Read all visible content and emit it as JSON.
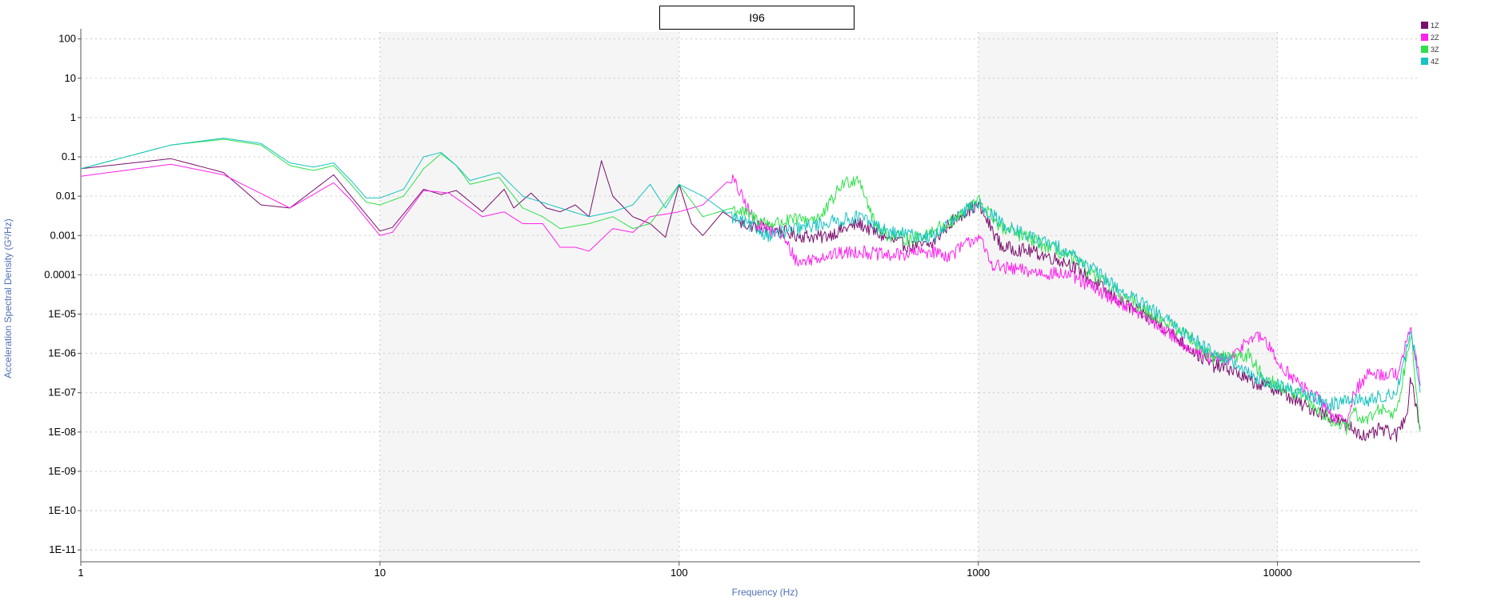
{
  "colors": {
    "1Z": "#7a0f6e",
    "2Z": "#ff22ee",
    "3Z": "#2ee04a",
    "4Z": "#16c4c0",
    "axis_title": "#4f6fb6",
    "band": "#f5f5f5",
    "grid": "#c8c8c8"
  },
  "chart_data": {
    "type": "line",
    "title": "I96",
    "xlabel": "Frequency (Hz)",
    "ylabel": "Acceleration Spectral Density (G²/Hz)",
    "x_scale": "log",
    "y_scale": "log",
    "xlim": [
      1,
      30000
    ],
    "ylim": [
      5e-12,
      150
    ],
    "grid": true,
    "legend_position": "top-right",
    "x_ticks": [
      "1",
      "10",
      "100",
      "1000",
      "10000"
    ],
    "y_ticks": [
      "100",
      "10",
      "1",
      "0.1",
      "0.01",
      "0.001",
      "0.0001",
      "1E-05",
      "1E-06",
      "1E-07",
      "1E-08",
      "1E-09",
      "1E-10",
      "1E-11"
    ],
    "series": [
      {
        "name": "1Z",
        "points": [
          [
            1,
            0.05
          ],
          [
            2,
            0.09
          ],
          [
            3,
            0.04
          ],
          [
            4,
            0.006
          ],
          [
            5,
            0.005
          ],
          [
            7,
            0.035
          ],
          [
            8,
            0.01
          ],
          [
            10,
            0.0013
          ],
          [
            11,
            0.0016
          ],
          [
            14,
            0.015
          ],
          [
            16,
            0.011
          ],
          [
            18,
            0.014
          ],
          [
            22,
            0.004
          ],
          [
            26,
            0.015
          ],
          [
            28,
            0.005
          ],
          [
            32,
            0.012
          ],
          [
            36,
            0.005
          ],
          [
            40,
            0.004
          ],
          [
            45,
            0.006
          ],
          [
            50,
            0.003
          ],
          [
            55,
            0.08
          ],
          [
            60,
            0.01
          ],
          [
            70,
            0.003
          ],
          [
            80,
            0.002
          ],
          [
            90,
            0.0009
          ],
          [
            100,
            0.02
          ],
          [
            110,
            0.002
          ],
          [
            120,
            0.001
          ],
          [
            140,
            0.004
          ],
          [
            160,
            0.002
          ],
          [
            200,
            0.0015
          ],
          [
            250,
            0.001
          ],
          [
            300,
            0.0009
          ],
          [
            400,
            0.002
          ],
          [
            500,
            0.0008
          ],
          [
            600,
            0.0005
          ],
          [
            700,
            0.0006
          ],
          [
            800,
            0.002
          ],
          [
            900,
            0.004
          ],
          [
            1000,
            0.006
          ],
          [
            1200,
            0.0005
          ],
          [
            1500,
            0.0004
          ],
          [
            2000,
            0.0002
          ],
          [
            3000,
            2e-05
          ],
          [
            4000,
            6e-06
          ],
          [
            5000,
            1.5e-06
          ],
          [
            6000,
            5e-07
          ],
          [
            7000,
            4e-07
          ],
          [
            8000,
            2e-07
          ],
          [
            10000,
            1.2e-07
          ],
          [
            12000,
            5e-08
          ],
          [
            15000,
            2.5e-08
          ],
          [
            18000,
            1.2e-08
          ],
          [
            20000,
            7e-09
          ],
          [
            22000,
            1.2e-08
          ],
          [
            25000,
            8e-09
          ],
          [
            27000,
            3e-08
          ],
          [
            28000,
            2.5e-07
          ],
          [
            30000,
            1.2e-08
          ]
        ]
      },
      {
        "name": "2Z",
        "points": [
          [
            1,
            0.032
          ],
          [
            2,
            0.065
          ],
          [
            3,
            0.035
          ],
          [
            5,
            0.005
          ],
          [
            7,
            0.022
          ],
          [
            8,
            0.008
          ],
          [
            10,
            0.001
          ],
          [
            11,
            0.0012
          ],
          [
            14,
            0.014
          ],
          [
            17,
            0.012
          ],
          [
            22,
            0.003
          ],
          [
            26,
            0.004
          ],
          [
            30,
            0.002
          ],
          [
            35,
            0.002
          ],
          [
            40,
            0.0005
          ],
          [
            45,
            0.0005
          ],
          [
            50,
            0.0004
          ],
          [
            60,
            0.0015
          ],
          [
            70,
            0.0012
          ],
          [
            80,
            0.003
          ],
          [
            100,
            0.004
          ],
          [
            120,
            0.006
          ],
          [
            150,
            0.03
          ],
          [
            180,
            0.002
          ],
          [
            220,
            0.001
          ],
          [
            250,
            0.0002
          ],
          [
            300,
            0.0003
          ],
          [
            400,
            0.0004
          ],
          [
            500,
            0.0003
          ],
          [
            700,
            0.0004
          ],
          [
            800,
            0.0003
          ],
          [
            1000,
            0.001
          ],
          [
            1100,
            0.0002
          ],
          [
            1200,
            0.00015
          ],
          [
            1500,
            0.00012
          ],
          [
            2000,
            0.0001
          ],
          [
            3000,
            2e-05
          ],
          [
            4000,
            5e-06
          ],
          [
            5000,
            1.5e-06
          ],
          [
            6000,
            7e-07
          ],
          [
            7000,
            7e-07
          ],
          [
            8000,
            2.5e-06
          ],
          [
            9000,
            2.5e-06
          ],
          [
            10000,
            6e-07
          ],
          [
            12000,
            1.5e-07
          ],
          [
            14000,
            6e-08
          ],
          [
            15000,
            3e-08
          ],
          [
            17000,
            1.5e-08
          ],
          [
            18000,
            1e-07
          ],
          [
            20000,
            3e-07
          ],
          [
            25000,
            3e-07
          ],
          [
            28000,
            4e-06
          ],
          [
            30000,
            1.5e-07
          ]
        ]
      },
      {
        "name": "3Z",
        "points": [
          [
            1,
            0.05
          ],
          [
            2,
            0.2
          ],
          [
            3,
            0.28
          ],
          [
            4,
            0.2
          ],
          [
            5,
            0.06
          ],
          [
            6,
            0.045
          ],
          [
            7,
            0.06
          ],
          [
            8,
            0.02
          ],
          [
            9,
            0.007
          ],
          [
            10,
            0.006
          ],
          [
            12,
            0.01
          ],
          [
            14,
            0.05
          ],
          [
            16,
            0.12
          ],
          [
            18,
            0.06
          ],
          [
            20,
            0.02
          ],
          [
            25,
            0.03
          ],
          [
            30,
            0.005
          ],
          [
            35,
            0.003
          ],
          [
            40,
            0.0015
          ],
          [
            50,
            0.002
          ],
          [
            60,
            0.003
          ],
          [
            70,
            0.0015
          ],
          [
            80,
            0.002
          ],
          [
            100,
            0.02
          ],
          [
            120,
            0.003
          ],
          [
            150,
            0.005
          ],
          [
            200,
            0.002
          ],
          [
            300,
            0.003
          ],
          [
            350,
            0.02
          ],
          [
            400,
            0.03
          ],
          [
            450,
            0.002
          ],
          [
            500,
            0.001
          ],
          [
            600,
            0.0008
          ],
          [
            800,
            0.002
          ],
          [
            1000,
            0.008
          ],
          [
            1200,
            0.0015
          ],
          [
            1500,
            0.0008
          ],
          [
            2000,
            0.0003
          ],
          [
            3000,
            3e-05
          ],
          [
            4000,
            8e-06
          ],
          [
            5000,
            3e-06
          ],
          [
            6000,
            8e-07
          ],
          [
            8000,
            9e-07
          ],
          [
            9000,
            2.5e-07
          ],
          [
            10000,
            1.5e-07
          ],
          [
            12000,
            8e-08
          ],
          [
            15000,
            2e-08
          ],
          [
            17000,
            1.2e-08
          ],
          [
            18000,
            3e-08
          ],
          [
            20000,
            2e-08
          ],
          [
            22000,
            4e-08
          ],
          [
            25000,
            3e-08
          ],
          [
            28000,
            4e-06
          ],
          [
            30000,
            1e-08
          ]
        ]
      },
      {
        "name": "4Z",
        "points": [
          [
            1,
            0.05
          ],
          [
            2,
            0.2
          ],
          [
            3,
            0.3
          ],
          [
            4,
            0.22
          ],
          [
            5,
            0.07
          ],
          [
            6,
            0.055
          ],
          [
            7,
            0.07
          ],
          [
            8,
            0.025
          ],
          [
            9,
            0.009
          ],
          [
            10,
            0.009
          ],
          [
            12,
            0.015
          ],
          [
            14,
            0.1
          ],
          [
            16,
            0.13
          ],
          [
            18,
            0.06
          ],
          [
            20,
            0.025
          ],
          [
            25,
            0.04
          ],
          [
            30,
            0.01
          ],
          [
            40,
            0.005
          ],
          [
            50,
            0.003
          ],
          [
            60,
            0.004
          ],
          [
            70,
            0.006
          ],
          [
            80,
            0.02
          ],
          [
            90,
            0.005
          ],
          [
            100,
            0.02
          ],
          [
            120,
            0.01
          ],
          [
            150,
            0.003
          ],
          [
            200,
            0.001
          ],
          [
            300,
            0.002
          ],
          [
            400,
            0.003
          ],
          [
            500,
            0.0012
          ],
          [
            700,
            0.0009
          ],
          [
            800,
            0.002
          ],
          [
            1000,
            0.007
          ],
          [
            1200,
            0.002
          ],
          [
            1500,
            0.0009
          ],
          [
            2000,
            0.0004
          ],
          [
            3000,
            4e-05
          ],
          [
            4000,
            1e-05
          ],
          [
            5000,
            3e-06
          ],
          [
            6000,
            1.2e-06
          ],
          [
            7000,
            6e-07
          ],
          [
            8000,
            3e-07
          ],
          [
            10000,
            1.5e-07
          ],
          [
            12000,
            1e-07
          ],
          [
            15000,
            5e-08
          ],
          [
            18000,
            7e-08
          ],
          [
            20000,
            6e-08
          ],
          [
            22000,
            8e-08
          ],
          [
            25000,
            1e-07
          ],
          [
            28000,
            4e-06
          ],
          [
            30000,
            1e-07
          ]
        ]
      }
    ]
  }
}
